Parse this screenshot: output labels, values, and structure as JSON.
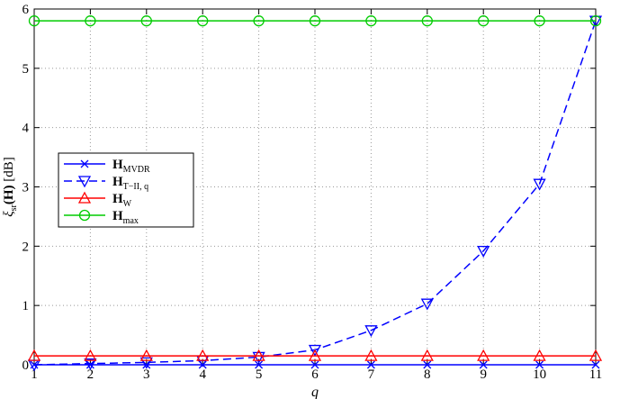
{
  "chart_data": {
    "type": "line",
    "title": "",
    "xlabel": "q",
    "ylabel_parts": {
      "main": "ξ",
      "sub": "sr",
      "arg": "(H)",
      "unit": " [dB]"
    },
    "x": [
      1,
      2,
      3,
      4,
      5,
      6,
      7,
      8,
      9,
      10,
      11
    ],
    "xlim": [
      1,
      11
    ],
    "ylim": [
      0,
      6
    ],
    "xticks": [
      "1",
      "2",
      "3",
      "4",
      "5",
      "6",
      "7",
      "8",
      "9",
      "10",
      "11"
    ],
    "yticks": [
      "0",
      "1",
      "2",
      "3",
      "4",
      "5",
      "6"
    ],
    "grid": true,
    "legend_position": "middle-left",
    "series": [
      {
        "name": "H",
        "name_sub": "MVDR",
        "color": "#0000ff",
        "dash": "solid",
        "marker": "x",
        "values": [
          0,
          0,
          0,
          0,
          0,
          0,
          0,
          0,
          0,
          0,
          0
        ]
      },
      {
        "name": "H",
        "name_sub": "T−II, q",
        "color": "#0000ff",
        "dash": "dashed",
        "marker": "triangle-down",
        "values": [
          0.0,
          0.02,
          0.04,
          0.07,
          0.13,
          0.25,
          0.58,
          1.03,
          1.92,
          3.05,
          5.8
        ]
      },
      {
        "name": "H",
        "name_sub": "W",
        "color": "#ff0000",
        "dash": "solid",
        "marker": "triangle-up",
        "values": [
          0.15,
          0.15,
          0.15,
          0.15,
          0.15,
          0.15,
          0.15,
          0.15,
          0.15,
          0.15,
          0.15
        ]
      },
      {
        "name": "H",
        "name_sub": "max",
        "color": "#00cc00",
        "dash": "solid",
        "marker": "circle",
        "values": [
          5.8,
          5.8,
          5.8,
          5.8,
          5.8,
          5.8,
          5.8,
          5.8,
          5.8,
          5.8,
          5.8
        ]
      }
    ]
  }
}
